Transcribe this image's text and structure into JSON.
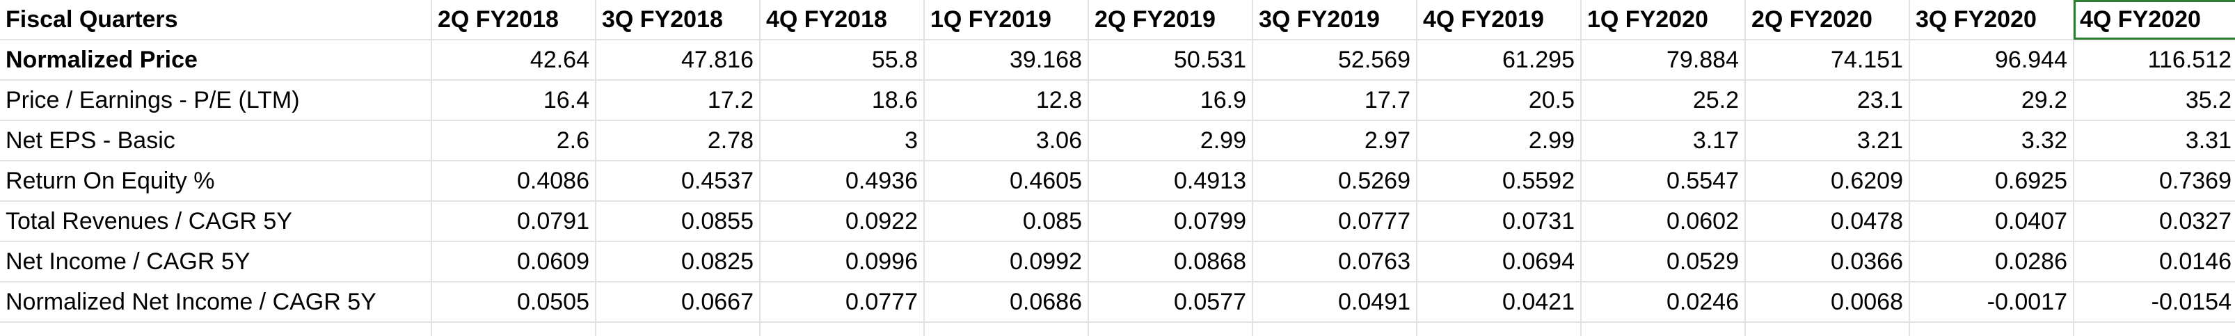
{
  "header": {
    "label": "Fiscal Quarters",
    "quarters": [
      "2Q FY2018",
      "3Q FY2018",
      "4Q FY2018",
      "1Q FY2019",
      "2Q FY2019",
      "3Q FY2019",
      "4Q FY2019",
      "1Q FY2020",
      "2Q FY2020",
      "3Q FY2020",
      "4Q FY2020"
    ]
  },
  "rows": [
    {
      "label": "Normalized Price",
      "bold": true,
      "values": [
        "42.64",
        "47.816",
        "55.8",
        "39.168",
        "50.531",
        "52.569",
        "61.295",
        "79.884",
        "74.151",
        "96.944",
        "116.512"
      ]
    },
    {
      "label": "Price / Earnings - P/E (LTM)",
      "bold": false,
      "values": [
        "16.4",
        "17.2",
        "18.6",
        "12.8",
        "16.9",
        "17.7",
        "20.5",
        "25.2",
        "23.1",
        "29.2",
        "35.2"
      ]
    },
    {
      "label": "Net EPS - Basic",
      "bold": false,
      "values": [
        "2.6",
        "2.78",
        "3",
        "3.06",
        "2.99",
        "2.97",
        "2.99",
        "3.17",
        "3.21",
        "3.32",
        "3.31"
      ]
    },
    {
      "label": "Return On Equity %",
      "bold": false,
      "values": [
        "0.4086",
        "0.4537",
        "0.4936",
        "0.4605",
        "0.4913",
        "0.5269",
        "0.5592",
        "0.5547",
        "0.6209",
        "0.6925",
        "0.7369"
      ]
    },
    {
      "label": "Total Revenues / CAGR 5Y",
      "bold": false,
      "values": [
        "0.0791",
        "0.0855",
        "0.0922",
        "0.085",
        "0.0799",
        "0.0777",
        "0.0731",
        "0.0602",
        "0.0478",
        "0.0407",
        "0.0327"
      ]
    },
    {
      "label": "Net Income / CAGR 5Y",
      "bold": false,
      "values": [
        "0.0609",
        "0.0825",
        "0.0996",
        "0.0992",
        "0.0868",
        "0.0763",
        "0.0694",
        "0.0529",
        "0.0366",
        "0.0286",
        "0.0146"
      ]
    },
    {
      "label": "Normalized Net Income / CAGR 5Y",
      "bold": false,
      "values": [
        "0.0505",
        "0.0667",
        "0.0777",
        "0.0686",
        "0.0577",
        "0.0491",
        "0.0421",
        "0.0246",
        "0.0068",
        "-0.0017",
        "-0.0154"
      ]
    }
  ],
  "selection": {
    "color": "#2e7d32"
  }
}
